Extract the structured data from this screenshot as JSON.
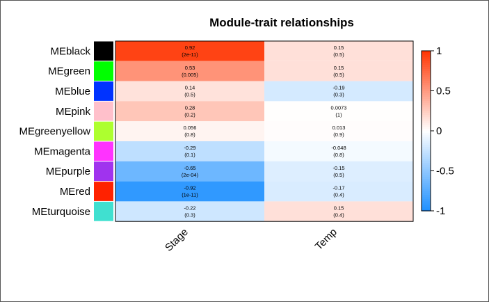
{
  "chart_data": {
    "type": "heatmap",
    "title": "Module-trait relationships",
    "columns": [
      "Stage",
      "Temp"
    ],
    "rows": [
      {
        "label": "MEblack",
        "color": "#000000",
        "values": [
          0.92,
          0.15
        ],
        "cell_text": [
          [
            "0.92",
            "(2e-11)"
          ],
          [
            "0.15",
            "(0.5)"
          ]
        ]
      },
      {
        "label": "MEgreen",
        "color": "#00ff00",
        "values": [
          0.53,
          0.15
        ],
        "cell_text": [
          [
            "0.53",
            "(0.005)"
          ],
          [
            "0.15",
            "(0.5)"
          ]
        ]
      },
      {
        "label": "MEblue",
        "color": "#0033ff",
        "values": [
          0.14,
          -0.19
        ],
        "cell_text": [
          [
            "0.14",
            "(0.5)"
          ],
          [
            "-0.19",
            "(0.3)"
          ]
        ]
      },
      {
        "label": "MEpink",
        "color": "#ffc0cb",
        "values": [
          0.28,
          0.0073
        ],
        "cell_text": [
          [
            "0.28",
            "(0.2)"
          ],
          [
            "0.0073",
            "(1)"
          ]
        ]
      },
      {
        "label": "MEgreenyellow",
        "color": "#adff2f",
        "values": [
          0.056,
          0.013
        ],
        "cell_text": [
          [
            "0.056",
            "(0.8)"
          ],
          [
            "0.013",
            "(0.9)"
          ]
        ]
      },
      {
        "label": "MEmagenta",
        "color": "#ff33ff",
        "values": [
          -0.29,
          -0.048
        ],
        "cell_text": [
          [
            "-0.29",
            "(0.1)"
          ],
          [
            "-0.048",
            "(0.8)"
          ]
        ]
      },
      {
        "label": "MEpurple",
        "color": "#a033ee",
        "values": [
          -0.65,
          -0.15
        ],
        "cell_text": [
          [
            "-0.65",
            "(2e-04)"
          ],
          [
            "-0.15",
            "(0.5)"
          ]
        ]
      },
      {
        "label": "MEred",
        "color": "#ff2200",
        "values": [
          -0.92,
          -0.17
        ],
        "cell_text": [
          [
            "-0.92",
            "(1e-11)"
          ],
          [
            "-0.17",
            "(0.4)"
          ]
        ]
      },
      {
        "label": "MEturquoise",
        "color": "#40e0d0",
        "values": [
          -0.22,
          0.15
        ],
        "cell_text": [
          [
            "-0.22",
            "(0.3)"
          ],
          [
            "0.15",
            "(0.4)"
          ]
        ]
      }
    ],
    "color_scale": {
      "min": -1,
      "max": 1,
      "low_color": "#1e90ff",
      "mid_color": "#ffffff",
      "high_color": "#ff3300",
      "ticks": [
        1,
        0.5,
        0,
        -0.5,
        -1
      ],
      "tick_labels": [
        "1",
        "0.5",
        "0",
        "-0.5",
        "-1"
      ]
    },
    "xlabel": "",
    "ylabel": "",
    "grid": false,
    "legend": "right"
  }
}
